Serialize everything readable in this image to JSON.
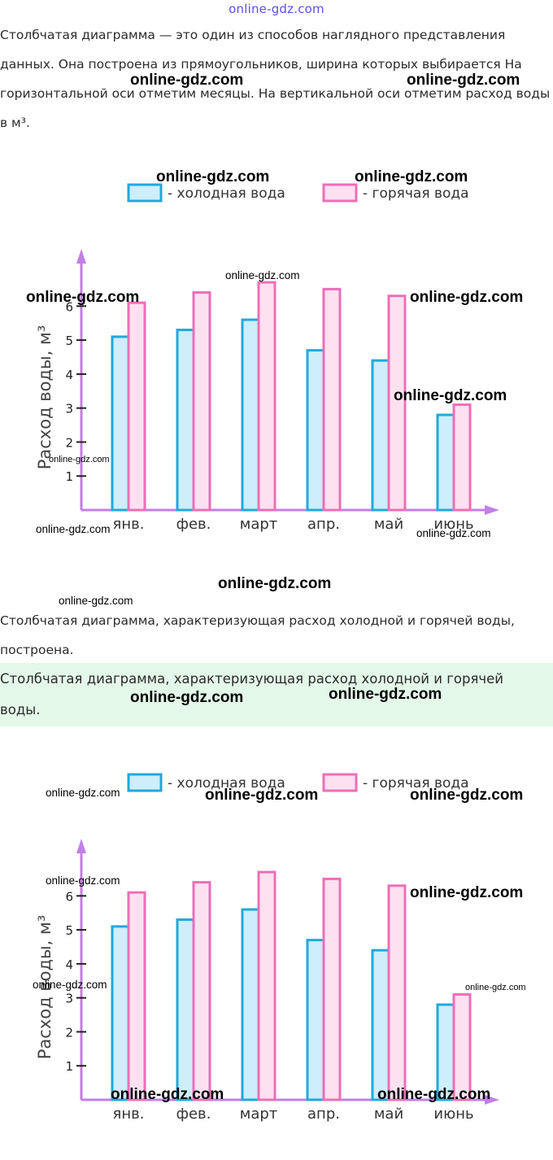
{
  "header": {
    "site_logo": "online-gdz.com"
  },
  "intro": {
    "paragraph": "Столбчатая диаграмма — это один из способов наглядного представления данных. Она построена из прямоугольников, ширина которых выбирается На горизонтальной оси отметим месяцы. На вертикальной оси отметим расход воды в м³."
  },
  "result": {
    "paragraph": "Столбчатая диаграмма, характеризующая расход холодной и горячей воды, построена."
  },
  "answer": {
    "text": "Столбчатая диаграмма, характеризующая расход холодной и горячей воды."
  },
  "colors": {
    "cold_fill": "#cdeefa",
    "cold_stroke": "#23a8dc",
    "hot_fill": "#fde1f0",
    "hot_stroke": "#ec6fb7",
    "axis": "#c27fe8",
    "answer_bg": "#e3f8e9"
  },
  "chart_data": [
    {
      "type": "bar",
      "title": "",
      "xlabel": "",
      "ylabel": "Расход воды, м³",
      "categories": [
        "янв.",
        "фев.",
        "март",
        "апр.",
        "май",
        "июнь"
      ],
      "yticks": [
        1,
        2,
        3,
        4,
        5,
        6
      ],
      "ylim": [
        0,
        7.3
      ],
      "grid": false,
      "legend_position": "top",
      "series": [
        {
          "name": "- холодная вода",
          "values": [
            5.1,
            5.3,
            5.6,
            4.7,
            4.4,
            2.8
          ]
        },
        {
          "name": "- горячая вода",
          "values": [
            6.1,
            6.4,
            6.7,
            6.5,
            6.3,
            3.1
          ]
        }
      ]
    },
    {
      "type": "bar",
      "title": "",
      "xlabel": "",
      "ylabel": "Расход воды, м³",
      "categories": [
        "янв.",
        "фев.",
        "март",
        "апр.",
        "май",
        "июнь"
      ],
      "yticks": [
        1,
        2,
        3,
        4,
        5,
        6
      ],
      "ylim": [
        0,
        7.3
      ],
      "grid": false,
      "legend_position": "top",
      "series": [
        {
          "name": "- холодная вода",
          "values": [
            5.1,
            5.3,
            5.6,
            4.7,
            4.4,
            2.8
          ]
        },
        {
          "name": "- горячая вода",
          "values": [
            6.1,
            6.4,
            6.7,
            6.5,
            6.3,
            3.1
          ]
        }
      ]
    }
  ],
  "watermarks": {
    "text": "online-gdz.com"
  }
}
